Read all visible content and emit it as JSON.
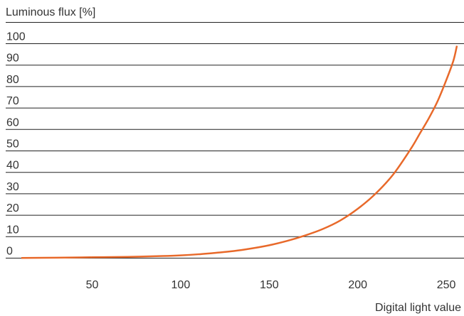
{
  "chart_data": {
    "type": "line",
    "ylabel": "Luminous flux [%]",
    "xlabel": "Digital light value",
    "ylim": [
      0,
      100
    ],
    "xlim": [
      8,
      258
    ],
    "yticks": [
      0,
      10,
      20,
      30,
      40,
      50,
      60,
      70,
      80,
      90,
      100
    ],
    "xticks": [
      50,
      100,
      150,
      200,
      250
    ],
    "grid": "horizontal",
    "line_color": "#e8692a",
    "grid_color": "#222222",
    "series": [
      {
        "x": [
          10,
          30,
          50,
          70,
          90,
          100,
          110,
          120,
          130,
          140,
          150,
          160,
          170,
          180,
          190,
          200,
          210,
          220,
          230,
          235,
          240,
          245,
          250,
          254,
          256
        ],
        "y": [
          0.1,
          0.2,
          0.4,
          0.6,
          1.0,
          1.3,
          1.8,
          2.5,
          3.3,
          4.5,
          6.0,
          8.0,
          10.5,
          13.5,
          17.5,
          23.0,
          30.0,
          39.0,
          51.0,
          58.0,
          65.0,
          73.0,
          83.0,
          92.0,
          99.0
        ]
      }
    ]
  }
}
